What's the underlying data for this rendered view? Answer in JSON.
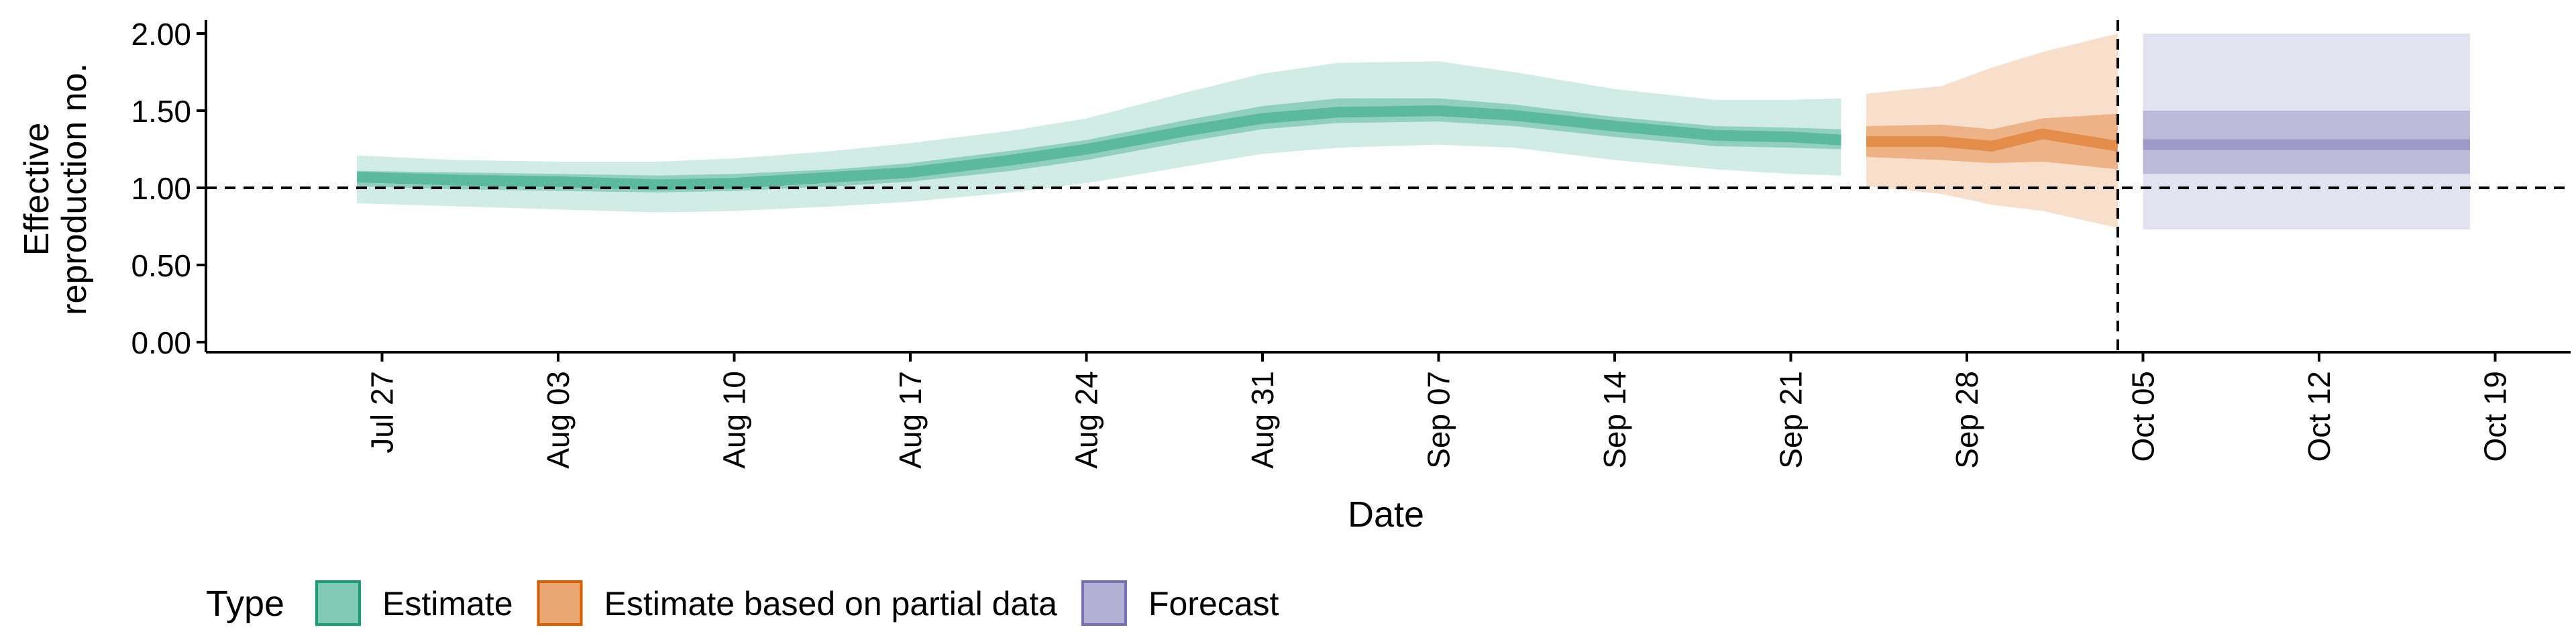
{
  "chart_data": {
    "type": "area",
    "ylabel_lines": [
      "Effective",
      "reproduction no."
    ],
    "xlabel": "Date",
    "ylim": [
      0,
      2
    ],
    "yticks": [
      0,
      0.5,
      1.0,
      1.5,
      2.0
    ],
    "ytick_labels": [
      "0.00",
      "0.50",
      "1.00",
      "1.50",
      "2.00"
    ],
    "x_domain": [
      "2020-07-20",
      "2020-10-22"
    ],
    "xticks": [
      "2020-07-27",
      "2020-08-03",
      "2020-08-10",
      "2020-08-17",
      "2020-08-24",
      "2020-08-31",
      "2020-09-07",
      "2020-09-14",
      "2020-09-21",
      "2020-09-28",
      "2020-10-05",
      "2020-10-12",
      "2020-10-19"
    ],
    "xtick_labels": [
      "Jul 27",
      "Aug 03",
      "Aug 10",
      "Aug 17",
      "Aug 24",
      "Aug 31",
      "Sep 07",
      "Sep 14",
      "Sep 21",
      "Sep 28",
      "Oct 05",
      "Oct 12",
      "Oct 19"
    ],
    "reference_line_y": 1.0,
    "vertical_line_x": "2020-10-04",
    "legend": {
      "title": "Type",
      "position": "bottom-left",
      "items": [
        "Estimate",
        "Estimate based on partial data",
        "Forecast"
      ]
    },
    "series": [
      {
        "name": "Estimate",
        "color": "#1b9e77",
        "points": [
          {
            "x": "2020-07-26",
            "lo90": 0.9,
            "lo50": 1.01,
            "median": 1.07,
            "hi50": 1.11,
            "hi90": 1.21
          },
          {
            "x": "2020-07-30",
            "lo90": 0.88,
            "lo50": 0.99,
            "median": 1.05,
            "hi50": 1.1,
            "hi90": 1.18
          },
          {
            "x": "2020-08-03",
            "lo90": 0.86,
            "lo50": 0.98,
            "median": 1.04,
            "hi50": 1.09,
            "hi90": 1.17
          },
          {
            "x": "2020-08-07",
            "lo90": 0.84,
            "lo50": 0.97,
            "median": 1.02,
            "hi50": 1.08,
            "hi90": 1.17
          },
          {
            "x": "2020-08-10",
            "lo90": 0.85,
            "lo50": 0.98,
            "median": 1.03,
            "hi50": 1.09,
            "hi90": 1.19
          },
          {
            "x": "2020-08-14",
            "lo90": 0.88,
            "lo50": 1.01,
            "median": 1.07,
            "hi50": 1.12,
            "hi90": 1.24
          },
          {
            "x": "2020-08-17",
            "lo90": 0.91,
            "lo50": 1.04,
            "median": 1.1,
            "hi50": 1.16,
            "hi90": 1.29
          },
          {
            "x": "2020-08-21",
            "lo90": 0.97,
            "lo50": 1.11,
            "median": 1.18,
            "hi50": 1.24,
            "hi90": 1.37
          },
          {
            "x": "2020-08-24",
            "lo90": 1.03,
            "lo50": 1.18,
            "median": 1.25,
            "hi50": 1.31,
            "hi90": 1.45
          },
          {
            "x": "2020-08-28",
            "lo90": 1.14,
            "lo50": 1.3,
            "median": 1.37,
            "hi50": 1.44,
            "hi90": 1.62
          },
          {
            "x": "2020-08-31",
            "lo90": 1.22,
            "lo50": 1.38,
            "median": 1.45,
            "hi50": 1.53,
            "hi90": 1.74
          },
          {
            "x": "2020-09-03",
            "lo90": 1.26,
            "lo50": 1.42,
            "median": 1.49,
            "hi50": 1.58,
            "hi90": 1.81
          },
          {
            "x": "2020-09-07",
            "lo90": 1.28,
            "lo50": 1.43,
            "median": 1.5,
            "hi50": 1.58,
            "hi90": 1.82
          },
          {
            "x": "2020-09-10",
            "lo90": 1.26,
            "lo50": 1.4,
            "median": 1.47,
            "hi50": 1.54,
            "hi90": 1.75
          },
          {
            "x": "2020-09-14",
            "lo90": 1.18,
            "lo50": 1.33,
            "median": 1.4,
            "hi50": 1.46,
            "hi90": 1.64
          },
          {
            "x": "2020-09-18",
            "lo90": 1.12,
            "lo50": 1.27,
            "median": 1.34,
            "hi50": 1.4,
            "hi90": 1.57
          },
          {
            "x": "2020-09-21",
            "lo90": 1.09,
            "lo50": 1.26,
            "median": 1.33,
            "hi50": 1.39,
            "hi90": 1.57
          },
          {
            "x": "2020-09-23",
            "lo90": 1.08,
            "lo50": 1.25,
            "median": 1.31,
            "hi50": 1.38,
            "hi90": 1.58
          }
        ]
      },
      {
        "name": "Estimate based on partial data",
        "color": "#d95f02",
        "points": [
          {
            "x": "2020-09-24",
            "lo90": 1.01,
            "lo50": 1.2,
            "median": 1.3,
            "hi50": 1.4,
            "hi90": 1.61
          },
          {
            "x": "2020-09-27",
            "lo90": 0.96,
            "lo50": 1.18,
            "median": 1.3,
            "hi50": 1.41,
            "hi90": 1.66
          },
          {
            "x": "2020-09-29",
            "lo90": 0.89,
            "lo50": 1.16,
            "median": 1.27,
            "hi50": 1.38,
            "hi90": 1.78
          },
          {
            "x": "2020-10-01",
            "lo90": 0.85,
            "lo50": 1.17,
            "median": 1.35,
            "hi50": 1.45,
            "hi90": 1.88
          },
          {
            "x": "2020-10-04",
            "lo90": 0.74,
            "lo50": 1.12,
            "median": 1.27,
            "hi50": 1.48,
            "hi90": 2.0
          }
        ]
      },
      {
        "name": "Forecast",
        "color": "#7570b3",
        "points": [
          {
            "x": "2020-10-05",
            "lo90": 0.73,
            "lo50": 1.09,
            "median": 1.28,
            "hi50": 1.5,
            "hi90": 2.0
          },
          {
            "x": "2020-10-18",
            "lo90": 0.73,
            "lo50": 1.09,
            "median": 1.28,
            "hi50": 1.5,
            "hi90": 2.0
          }
        ]
      }
    ]
  }
}
